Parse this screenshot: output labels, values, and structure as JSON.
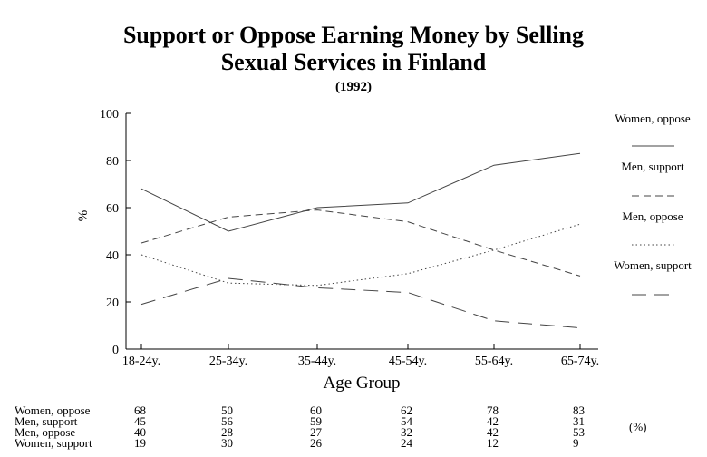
{
  "chart_data": {
    "type": "line",
    "title": "Support or Oppose Earning Money by Selling",
    "title_line2": "Sexual Services in Finland",
    "subtitle": "(1992)",
    "xlabel": "Age Group",
    "ylabel": "%",
    "categories": [
      "18-24y.",
      "25-34y.",
      "35-44y.",
      "45-54y.",
      "55-64y.",
      "65-74y."
    ],
    "ylim": [
      0,
      100
    ],
    "yticks": [
      0,
      20,
      40,
      60,
      80,
      100
    ],
    "grid": false,
    "legend_position": "right",
    "series": [
      {
        "name": "Women, oppose",
        "values": [
          68,
          50,
          60,
          62,
          78,
          83
        ],
        "dash": "solid"
      },
      {
        "name": "Men, support",
        "values": [
          45,
          56,
          59,
          54,
          42,
          31
        ],
        "dash": "dashed"
      },
      {
        "name": "Men, oppose",
        "values": [
          40,
          28,
          27,
          32,
          42,
          53
        ],
        "dash": "dotted"
      },
      {
        "name": "Women, support",
        "values": [
          19,
          30,
          26,
          24,
          12,
          9
        ],
        "dash": "long-dashed"
      }
    ],
    "table_unit": "(%)"
  }
}
